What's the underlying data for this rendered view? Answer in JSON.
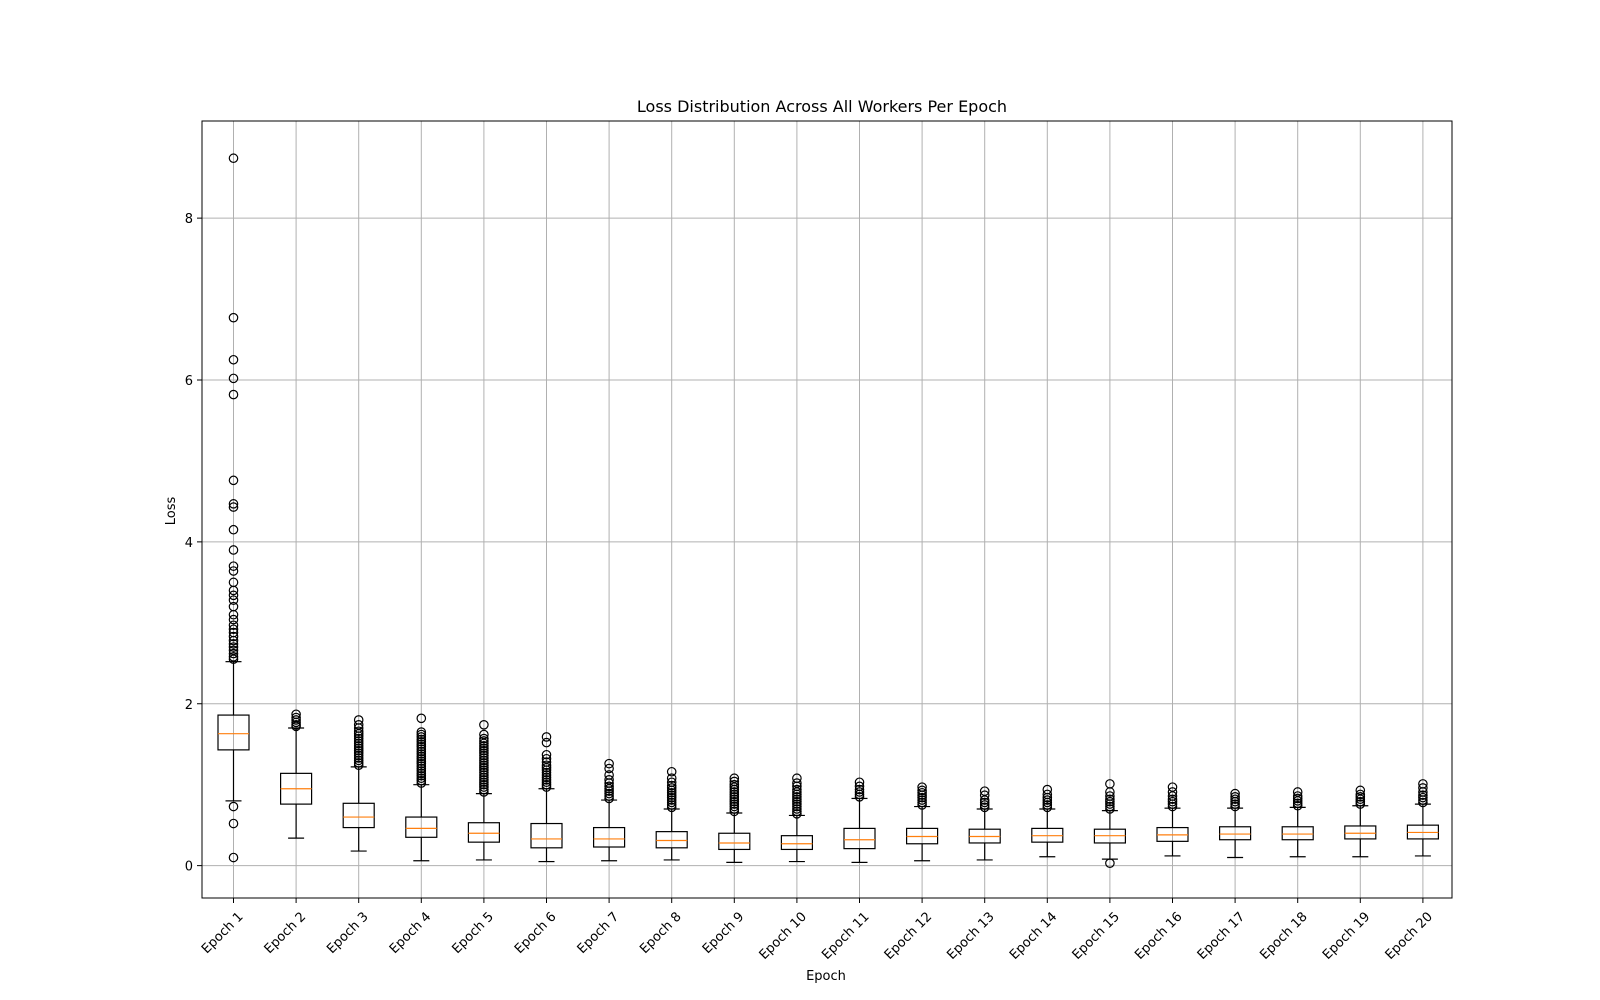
{
  "chart_data": {
    "type": "box",
    "title": "Loss Distribution Across All Workers Per Epoch",
    "xlabel": "Epoch",
    "ylabel": "Loss",
    "ylim": [
      -0.4,
      9.2
    ],
    "yticks": [
      0,
      2,
      4,
      6,
      8
    ],
    "grid": true,
    "colors": {
      "box": "#000000",
      "median": "#ff7f0e",
      "grid": "#b0b0b0"
    },
    "categories": [
      "Epoch 1",
      "Epoch 2",
      "Epoch 3",
      "Epoch 4",
      "Epoch 5",
      "Epoch 6",
      "Epoch 7",
      "Epoch 8",
      "Epoch 9",
      "Epoch 10",
      "Epoch 11",
      "Epoch 12",
      "Epoch 13",
      "Epoch 14",
      "Epoch 15",
      "Epoch 16",
      "Epoch 17",
      "Epoch 18",
      "Epoch 19",
      "Epoch 20"
    ],
    "boxes": [
      {
        "whisker_low": 0.8,
        "q1": 1.43,
        "median": 1.63,
        "q3": 1.86,
        "whisker_high": 2.52,
        "fliers": [
          0.1,
          0.52,
          0.73,
          2.55,
          2.58,
          2.62,
          2.66,
          2.7,
          2.74,
          2.78,
          2.83,
          2.88,
          2.92,
          2.97,
          3.04,
          3.1,
          3.2,
          3.28,
          3.34,
          3.4,
          3.5,
          3.64,
          3.7,
          3.9,
          4.15,
          4.43,
          4.47,
          4.76,
          5.82,
          6.02,
          6.25,
          6.77,
          8.74
        ]
      },
      {
        "whisker_low": 0.34,
        "q1": 0.76,
        "median": 0.95,
        "q3": 1.14,
        "whisker_high": 1.7,
        "fliers": [
          1.72,
          1.74,
          1.77,
          1.8,
          1.83,
          1.87
        ]
      },
      {
        "whisker_low": 0.18,
        "q1": 0.47,
        "median": 0.6,
        "q3": 0.77,
        "whisker_high": 1.22,
        "fliers": [
          1.24,
          1.27,
          1.3,
          1.33,
          1.36,
          1.39,
          1.42,
          1.45,
          1.48,
          1.51,
          1.54,
          1.57,
          1.6,
          1.63,
          1.66,
          1.7,
          1.74,
          1.8
        ]
      },
      {
        "whisker_low": 0.06,
        "q1": 0.35,
        "median": 0.46,
        "q3": 0.6,
        "whisker_high": 1.0,
        "fliers": [
          1.02,
          1.05,
          1.08,
          1.11,
          1.14,
          1.17,
          1.2,
          1.23,
          1.26,
          1.29,
          1.32,
          1.35,
          1.38,
          1.41,
          1.44,
          1.47,
          1.5,
          1.53,
          1.56,
          1.59,
          1.62,
          1.65,
          1.82
        ]
      },
      {
        "whisker_low": 0.07,
        "q1": 0.29,
        "median": 0.4,
        "q3": 0.53,
        "whisker_high": 0.89,
        "fliers": [
          0.91,
          0.94,
          0.97,
          1.0,
          1.03,
          1.06,
          1.09,
          1.12,
          1.15,
          1.18,
          1.21,
          1.24,
          1.27,
          1.3,
          1.33,
          1.36,
          1.39,
          1.42,
          1.45,
          1.48,
          1.51,
          1.54,
          1.57,
          1.62,
          1.74
        ]
      },
      {
        "whisker_low": 0.05,
        "q1": 0.22,
        "median": 0.33,
        "q3": 0.52,
        "whisker_high": 0.95,
        "fliers": [
          0.97,
          1.0,
          1.03,
          1.06,
          1.09,
          1.12,
          1.15,
          1.18,
          1.21,
          1.24,
          1.28,
          1.32,
          1.37,
          1.52,
          1.59
        ]
      },
      {
        "whisker_low": 0.06,
        "q1": 0.23,
        "median": 0.33,
        "q3": 0.47,
        "whisker_high": 0.81,
        "fliers": [
          0.83,
          0.86,
          0.89,
          0.92,
          0.95,
          0.98,
          1.02,
          1.06,
          1.12,
          1.2,
          1.26
        ]
      },
      {
        "whisker_low": 0.07,
        "q1": 0.22,
        "median": 0.31,
        "q3": 0.42,
        "whisker_high": 0.7,
        "fliers": [
          0.72,
          0.75,
          0.78,
          0.81,
          0.84,
          0.87,
          0.9,
          0.93,
          0.96,
          0.99,
          1.03,
          1.08,
          1.16
        ]
      },
      {
        "whisker_low": 0.04,
        "q1": 0.2,
        "median": 0.28,
        "q3": 0.4,
        "whisker_high": 0.65,
        "fliers": [
          0.67,
          0.7,
          0.73,
          0.76,
          0.79,
          0.82,
          0.85,
          0.88,
          0.91,
          0.94,
          0.97,
          1.0,
          1.04,
          1.08
        ]
      },
      {
        "whisker_low": 0.05,
        "q1": 0.2,
        "median": 0.27,
        "q3": 0.37,
        "whisker_high": 0.62,
        "fliers": [
          0.64,
          0.67,
          0.7,
          0.73,
          0.76,
          0.79,
          0.82,
          0.85,
          0.88,
          0.91,
          0.94,
          0.98,
          1.02,
          1.08
        ]
      },
      {
        "whisker_low": 0.04,
        "q1": 0.21,
        "median": 0.32,
        "q3": 0.46,
        "whisker_high": 0.83,
        "fliers": [
          0.85,
          0.88,
          0.91,
          0.94,
          0.98,
          1.03
        ]
      },
      {
        "whisker_low": 0.06,
        "q1": 0.27,
        "median": 0.36,
        "q3": 0.46,
        "whisker_high": 0.73,
        "fliers": [
          0.75,
          0.78,
          0.81,
          0.84,
          0.87,
          0.9,
          0.93,
          0.97
        ]
      },
      {
        "whisker_low": 0.07,
        "q1": 0.28,
        "median": 0.36,
        "q3": 0.45,
        "whisker_high": 0.7,
        "fliers": [
          0.72,
          0.75,
          0.78,
          0.81,
          0.87,
          0.92
        ]
      },
      {
        "whisker_low": 0.11,
        "q1": 0.29,
        "median": 0.37,
        "q3": 0.46,
        "whisker_high": 0.7,
        "fliers": [
          0.72,
          0.75,
          0.78,
          0.81,
          0.84,
          0.88,
          0.94
        ]
      },
      {
        "whisker_low": 0.08,
        "q1": 0.28,
        "median": 0.37,
        "q3": 0.45,
        "whisker_high": 0.68,
        "fliers": [
          0.03,
          0.7,
          0.73,
          0.76,
          0.79,
          0.82,
          0.86,
          0.91,
          1.01
        ]
      },
      {
        "whisker_low": 0.12,
        "q1": 0.3,
        "median": 0.38,
        "q3": 0.47,
        "whisker_high": 0.71,
        "fliers": [
          0.73,
          0.76,
          0.79,
          0.82,
          0.86,
          0.91,
          0.97
        ]
      },
      {
        "whisker_low": 0.1,
        "q1": 0.32,
        "median": 0.39,
        "q3": 0.48,
        "whisker_high": 0.71,
        "fliers": [
          0.73,
          0.76,
          0.79,
          0.82,
          0.85,
          0.89
        ]
      },
      {
        "whisker_low": 0.11,
        "q1": 0.32,
        "median": 0.39,
        "q3": 0.48,
        "whisker_high": 0.72,
        "fliers": [
          0.74,
          0.77,
          0.8,
          0.83,
          0.86,
          0.91
        ]
      },
      {
        "whisker_low": 0.11,
        "q1": 0.33,
        "median": 0.4,
        "q3": 0.49,
        "whisker_high": 0.74,
        "fliers": [
          0.76,
          0.79,
          0.82,
          0.85,
          0.88,
          0.93
        ]
      },
      {
        "whisker_low": 0.12,
        "q1": 0.33,
        "median": 0.41,
        "q3": 0.5,
        "whisker_high": 0.76,
        "fliers": [
          0.78,
          0.81,
          0.84,
          0.87,
          0.91,
          0.96,
          1.01
        ]
      }
    ]
  }
}
